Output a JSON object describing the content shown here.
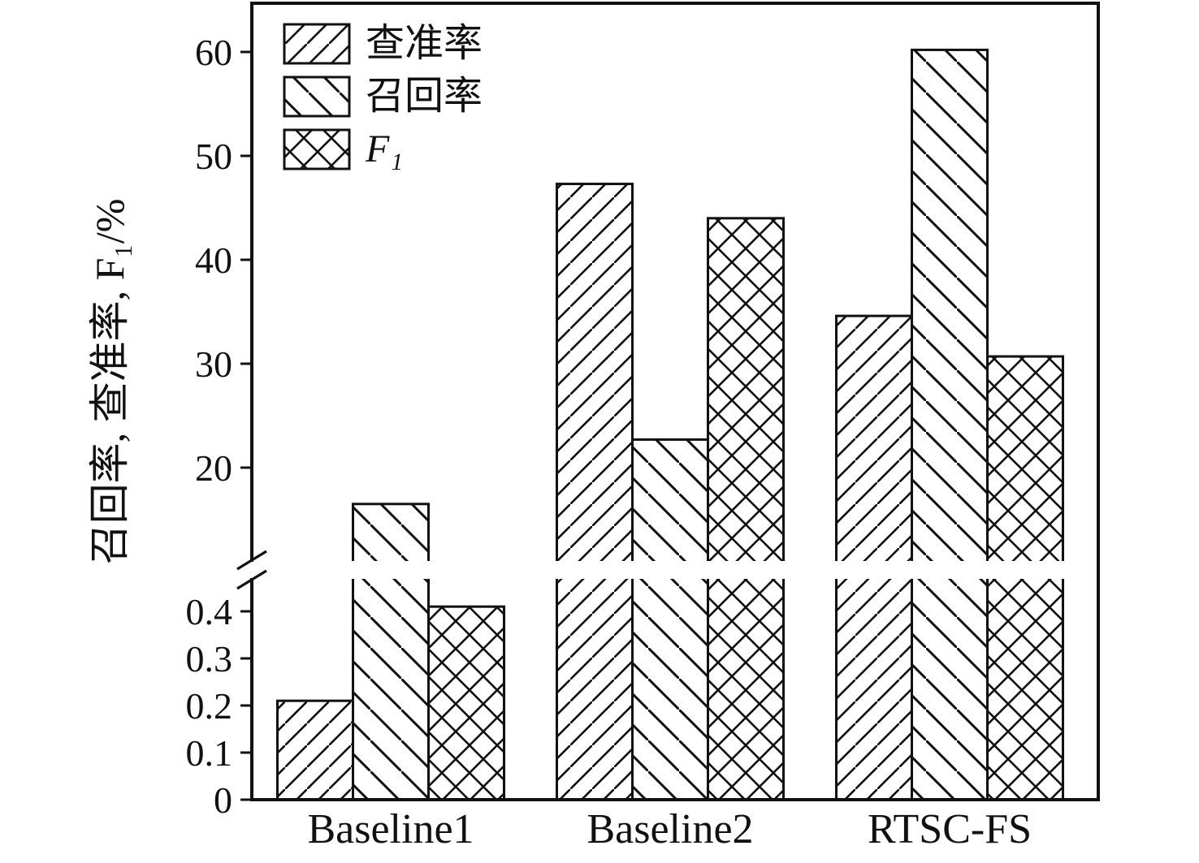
{
  "chart_data": {
    "type": "bar",
    "categories": [
      "Baseline1",
      "Baseline2",
      "RTSC-FS"
    ],
    "series": [
      {
        "name": "查准率",
        "hatch": "/",
        "values": [
          0.21,
          47.3,
          34.6
        ]
      },
      {
        "name": "召回率",
        "hatch": "\\",
        "values": [
          16.5,
          22.7,
          60.2
        ]
      },
      {
        "name": "F₁",
        "hatch": "x",
        "values": [
          0.41,
          44.0,
          30.7
        ]
      }
    ],
    "ylabel": "召回率, 查准率, F₁/%",
    "xlabel": "",
    "title": "",
    "y_axis": {
      "broken": true,
      "lower_ticks": [
        "0",
        "0.1",
        "0.2",
        "0.3",
        "0.4"
      ],
      "upper_ticks": [
        "20",
        "30",
        "40",
        "50",
        "60"
      ],
      "lower_range": [
        0,
        0.45
      ],
      "upper_range": [
        12,
        62
      ]
    },
    "legend_position": "top-left",
    "grid": false,
    "bar_fill": "#ffffff",
    "line_color": "#111111"
  }
}
